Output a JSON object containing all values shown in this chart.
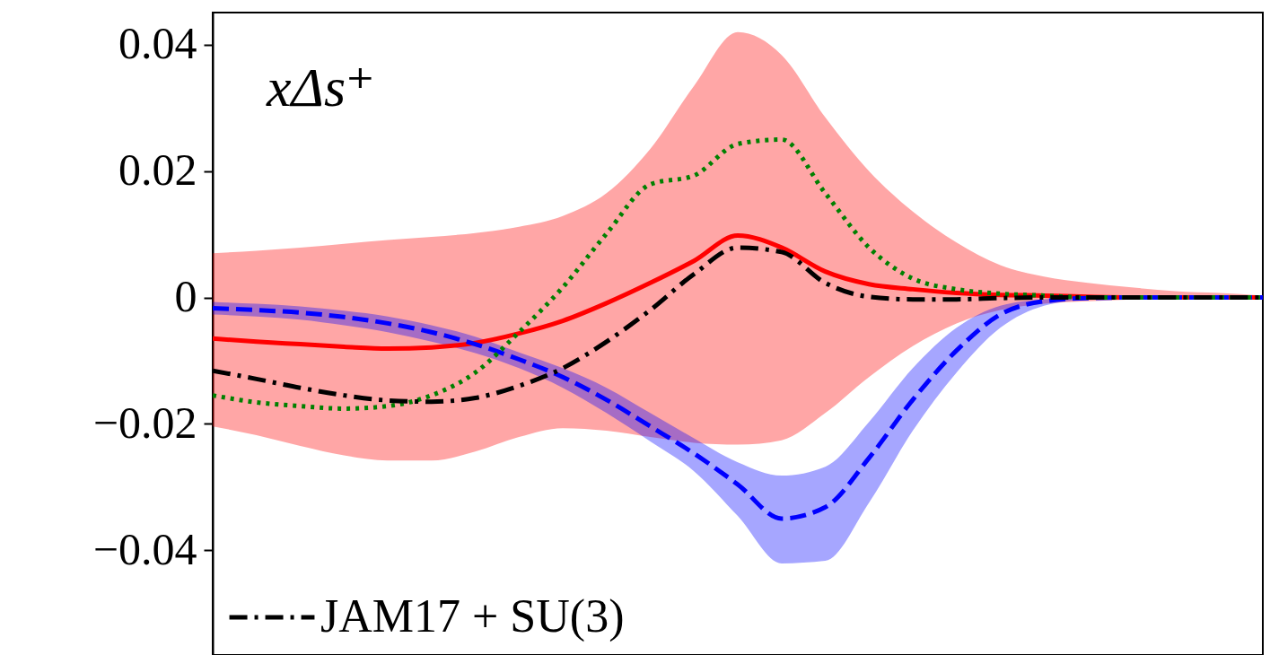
{
  "chart_data": {
    "type": "line",
    "categories": [
      null,
      null,
      null,
      null,
      null,
      null,
      null,
      null,
      null,
      null,
      null,
      null,
      null,
      null,
      null,
      null,
      null,
      null,
      null,
      null,
      null,
      null,
      null,
      null,
      null
    ],
    "series": [
      {
        "color": "#ff0000",
        "line_style": "solid",
        "values": [
          -0.0065,
          -0.007,
          -0.0074,
          -0.0078,
          -0.0081,
          -0.0079,
          -0.0072,
          -0.0057,
          -0.0037,
          -0.0009,
          0.0023,
          0.0058,
          0.0098,
          0.0079,
          0.0041,
          0.0021,
          0.0013,
          0.0007,
          0.0004,
          0.0003,
          0.0001,
          0,
          0,
          0,
          0
        ],
        "upper": [
          0.007,
          0.0074,
          0.0079,
          0.0085,
          0.0091,
          0.0096,
          0.0102,
          0.0112,
          0.0129,
          0.0165,
          0.0235,
          0.0335,
          0.042,
          0.0384,
          0.0285,
          0.02,
          0.0136,
          0.0087,
          0.0051,
          0.0033,
          0.0023,
          0.0016,
          0.001,
          0.0007,
          0.0003
        ],
        "lower": [
          -0.0204,
          -0.0218,
          -0.0235,
          -0.025,
          -0.0258,
          -0.0258,
          -0.0244,
          -0.0221,
          -0.0207,
          -0.0211,
          -0.0221,
          -0.023,
          -0.0233,
          -0.0226,
          -0.0183,
          -0.0126,
          -0.0077,
          -0.0041,
          -0.002,
          -0.001,
          -0.0006,
          -0.0003,
          0,
          0,
          0
        ]
      },
      {
        "color": "#0000ff",
        "line_style": "dashed",
        "values": [
          -0.0017,
          -0.002,
          -0.0024,
          -0.0031,
          -0.0041,
          -0.0055,
          -0.0074,
          -0.0098,
          -0.0126,
          -0.0162,
          -0.0204,
          -0.0247,
          -0.0296,
          -0.035,
          -0.0332,
          -0.0254,
          -0.0162,
          -0.0084,
          -0.0027,
          -0.0006,
          -0.0001,
          0,
          0,
          0,
          0
        ],
        "upper": [
          -0.0007,
          -0.001,
          -0.0014,
          -0.0021,
          -0.003,
          -0.0044,
          -0.0062,
          -0.0087,
          -0.0112,
          -0.0143,
          -0.0183,
          -0.0223,
          -0.0261,
          -0.0282,
          -0.0268,
          -0.0197,
          -0.0112,
          -0.0048,
          -0.0013,
          -0.0003,
          0,
          0,
          0,
          0,
          0
        ],
        "lower": [
          -0.0027,
          -0.003,
          -0.0035,
          -0.0044,
          -0.0055,
          -0.007,
          -0.0088,
          -0.0112,
          -0.0143,
          -0.0183,
          -0.0228,
          -0.0275,
          -0.0346,
          -0.0421,
          -0.0417,
          -0.0325,
          -0.0211,
          -0.0119,
          -0.0048,
          -0.0013,
          -0.0003,
          0,
          0,
          0,
          0
        ]
      },
      {
        "color": "#008000",
        "line_style": "dotted",
        "values": [
          -0.0155,
          -0.0166,
          -0.0172,
          -0.0176,
          -0.0172,
          -0.0155,
          -0.0119,
          -0.0055,
          0.0016,
          0.0101,
          0.0179,
          0.0193,
          0.0243,
          0.025,
          0.0165,
          0.0079,
          0.003,
          0.0013,
          0.0006,
          0.0003,
          0,
          0,
          0,
          0,
          0
        ]
      },
      {
        "name": "JAM17 + SU(3)",
        "color": "#000000",
        "line_style": "dashdot",
        "values": [
          -0.0116,
          -0.0129,
          -0.0143,
          -0.0155,
          -0.0163,
          -0.0165,
          -0.0159,
          -0.014,
          -0.0112,
          -0.007,
          -0.002,
          0.0037,
          0.0079,
          0.0072,
          0.0023,
          0.0001,
          -0.0003,
          -0.0003,
          -0.0001,
          0,
          0,
          0,
          0,
          0,
          0
        ]
      }
    ],
    "ylim": [
      -0.0566,
      0.0451
    ],
    "yticks": [
      -0.04,
      -0.02,
      0,
      0.02,
      0.04
    ],
    "annotations": [
      "xΔs⁺"
    ],
    "legend": "bottom",
    "grid": false,
    "tick_labels": "y"
  }
}
